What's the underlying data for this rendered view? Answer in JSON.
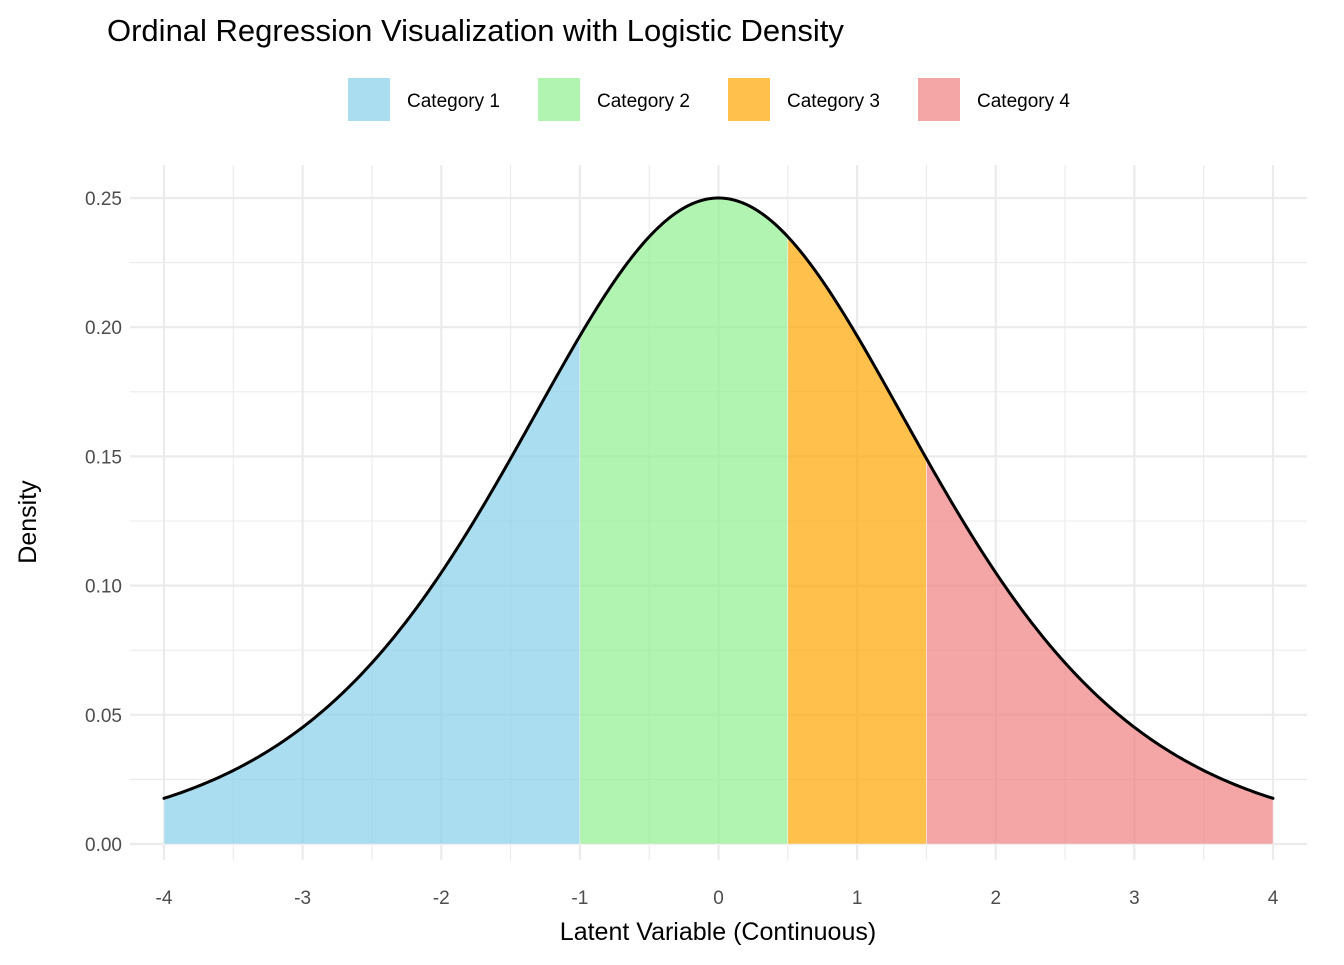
{
  "chart_data": {
    "type": "area",
    "title": "Ordinal Regression Visualization with Logistic Density",
    "xlabel": "Latent Variable (Continuous)",
    "ylabel": "Density",
    "xlim": [
      -4,
      4
    ],
    "ylim": [
      0,
      0.25
    ],
    "x_ticks": [
      "-4",
      "-3",
      "-2",
      "-1",
      "0",
      "1",
      "2",
      "3",
      "4"
    ],
    "y_ticks": [
      "0.00",
      "0.05",
      "0.10",
      "0.15",
      "0.20",
      "0.25"
    ],
    "grid": true,
    "legend_position": "top",
    "distribution": "logistic",
    "location": 0,
    "scale": 1,
    "thresholds": [
      -1,
      0.5,
      1.5
    ],
    "categories": [
      {
        "name": "Category 1",
        "from": -4,
        "to": -1,
        "color": "#87CEEB"
      },
      {
        "name": "Category 2",
        "from": -1,
        "to": 0.5,
        "color": "#90EE90"
      },
      {
        "name": "Category 3",
        "from": 0.5,
        "to": 1.5,
        "color": "#FFA500"
      },
      {
        "name": "Category 4",
        "from": 1.5,
        "to": 4,
        "color": "#F08080"
      }
    ],
    "fill_alpha": 0.7,
    "curve_color": "#000000",
    "series": [
      {
        "name": "Logistic density",
        "x": [
          -4,
          -3.5,
          -3,
          -2.5,
          -2,
          -1.5,
          -1,
          -0.5,
          0,
          0.5,
          1,
          1.5,
          2,
          2.5,
          3,
          3.5,
          4
        ],
        "values": [
          0.0177,
          0.0285,
          0.0452,
          0.0701,
          0.105,
          0.1491,
          0.1966,
          0.235,
          0.25,
          0.235,
          0.1966,
          0.1491,
          0.105,
          0.0701,
          0.0452,
          0.0285,
          0.0177
        ]
      }
    ]
  }
}
